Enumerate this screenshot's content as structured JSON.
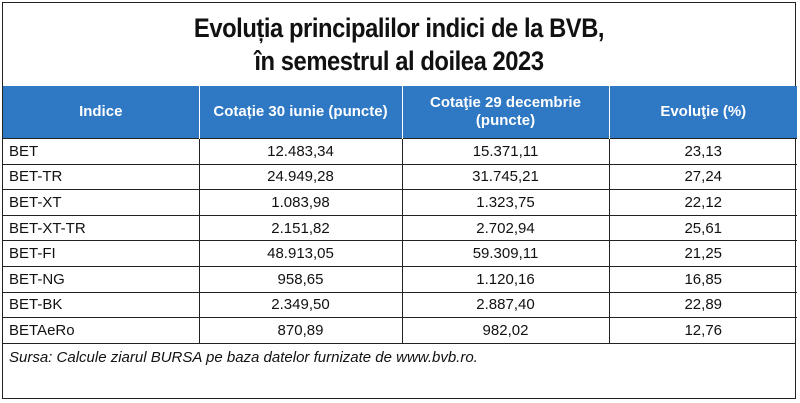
{
  "title": {
    "line1": "Evoluția principalilor indici de la BVB,",
    "line2": "în semestrul al doilea 2023"
  },
  "table": {
    "headers": [
      "Indice",
      "Cotație 30 iunie  (puncte)",
      "Cotaţie 29 decembrie (puncte)",
      "Evoluţie (%)"
    ],
    "rows": [
      [
        "BET",
        "12.483,34",
        "15.371,11",
        "23,13"
      ],
      [
        "BET-TR",
        "24.949,28",
        "31.745,21",
        "27,24"
      ],
      [
        "BET-XT",
        "1.083,98",
        "1.323,75",
        "22,12"
      ],
      [
        "BET-XT-TR",
        "2.151,82",
        "2.702,94",
        "25,61"
      ],
      [
        "BET-FI",
        "48.913,05",
        "59.309,11",
        "21,25"
      ],
      [
        "BET-NG",
        "958,65",
        "1.120,16",
        "16,85"
      ],
      [
        "BET-BK",
        "2.349,50",
        "2.887,40",
        "22,89"
      ],
      [
        "BETAeRo",
        "870,89",
        "982,02",
        "12,76"
      ]
    ]
  },
  "source": "Sursa: Calcule ziarul BURSA pe baza datelor furnizate de www.bvb.ro.",
  "colors": {
    "header_bg": "#2e78c4",
    "header_text": "#ffffff"
  }
}
